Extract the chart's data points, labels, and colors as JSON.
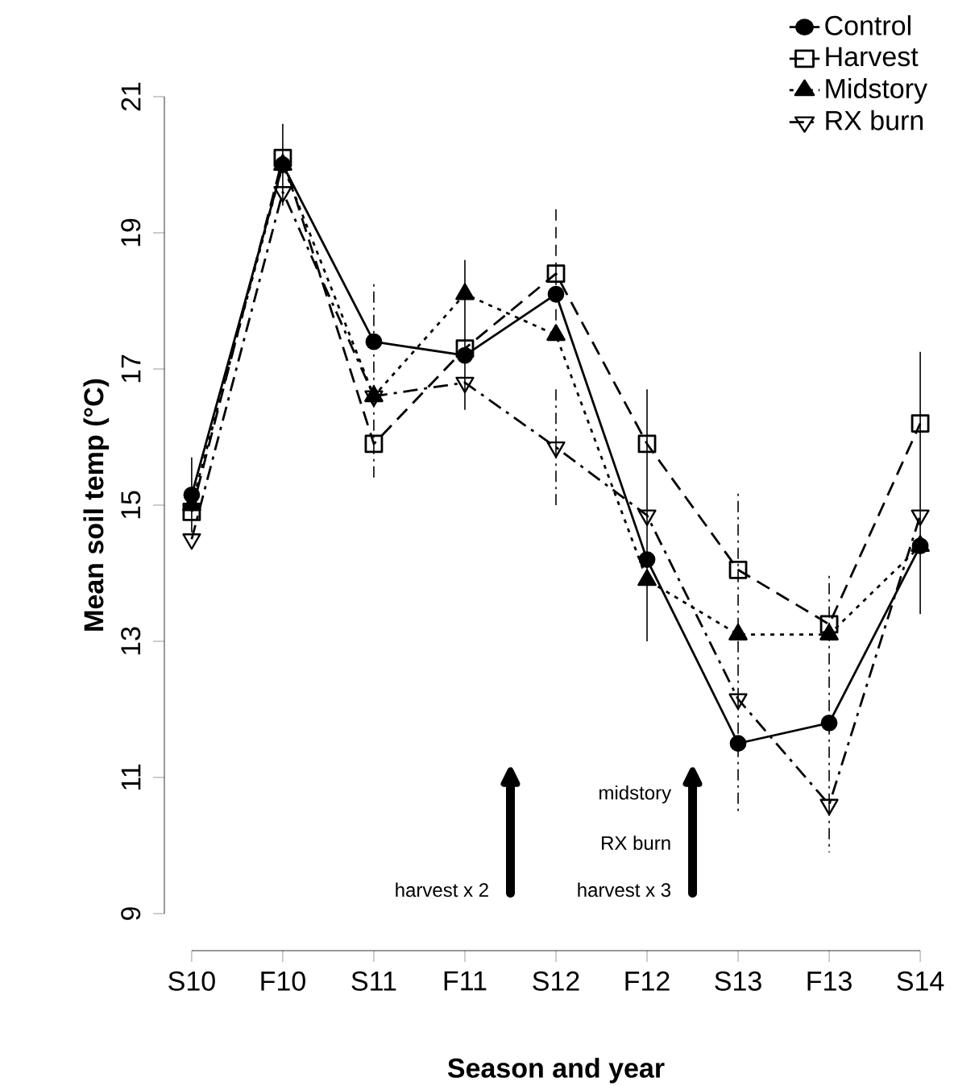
{
  "chart_data": {
    "type": "line",
    "xlabel": "Season and year",
    "ylabel": "Mean soil temp (°C)",
    "categories": [
      "S10",
      "F10",
      "S11",
      "F11",
      "S12",
      "F12",
      "S13",
      "F13",
      "S14"
    ],
    "ylim": [
      9,
      21
    ],
    "yticks": [
      9,
      11,
      13,
      15,
      17,
      19,
      21
    ],
    "legend": "top right",
    "grid": false,
    "series": [
      {
        "name": "Control",
        "color": "#000000",
        "marker": "circle",
        "line_style": "solid",
        "values": [
          15.15,
          20.0,
          17.4,
          17.2,
          18.1,
          14.2,
          11.5,
          11.8,
          14.4
        ],
        "errors": [
          0.55,
          0.6,
          null,
          [
            16.4,
            18.6
          ],
          null,
          [
            13.0,
            16.7
          ],
          null,
          null,
          [
            13.4,
            17.25
          ]
        ]
      },
      {
        "name": "Harvest",
        "color": "#000000",
        "marker": "square",
        "line_style": "dashed",
        "values": [
          14.9,
          20.1,
          15.9,
          17.3,
          18.4,
          15.9,
          14.05,
          13.25,
          16.2
        ],
        "errors": [
          null,
          null,
          null,
          null,
          [
            17.4,
            19.4
          ],
          null,
          null,
          null,
          null
        ]
      },
      {
        "name": "Midstory",
        "color": "#000000",
        "marker": "triangle",
        "line_style": "dotted",
        "values": [
          15.0,
          20.0,
          16.6,
          18.1,
          17.5,
          13.9,
          13.1,
          13.1,
          14.4
        ]
      },
      {
        "name": "RX burn",
        "color": "#000000",
        "marker": "triangle down",
        "line_style": "dashdot",
        "values": [
          14.5,
          19.6,
          16.6,
          16.8,
          15.85,
          14.85,
          12.15,
          10.6,
          14.85
        ],
        "errors": [
          null,
          null,
          [
            15.35,
            18.25
          ],
          null,
          [
            15.0,
            16.7
          ],
          null,
          [
            10.5,
            15.2
          ],
          [
            9.9,
            14.0
          ],
          null
        ]
      }
    ],
    "annotations": [
      "midstory",
      "RX burn",
      "harvest x 3",
      "harvest x 2"
    ]
  }
}
